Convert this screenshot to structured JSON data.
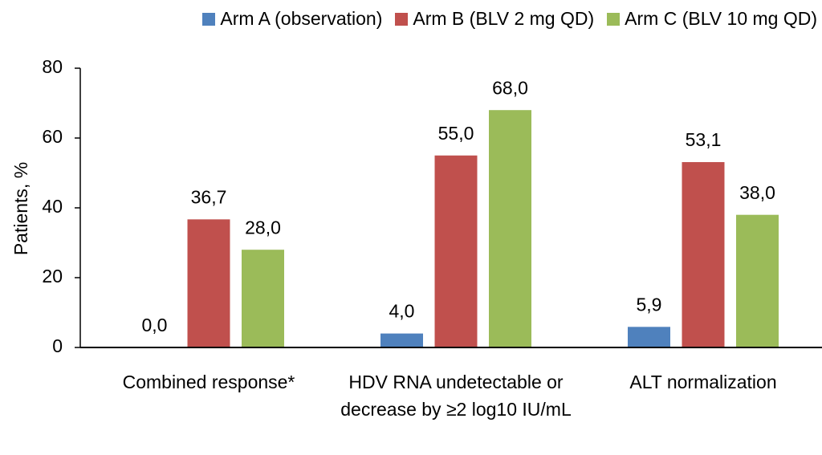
{
  "chart_data": {
    "type": "bar",
    "categories": [
      "Combined response*",
      "HDV RNA undetectable or decrease by ≥2 log10 IU/mL",
      "ALT normalization"
    ],
    "series": [
      {
        "name": "Arm A (observation)",
        "color": "#4f81bd",
        "values": [
          0.0,
          4.0,
          5.9
        ],
        "value_labels": [
          "0,0",
          "4,0",
          "5,9"
        ]
      },
      {
        "name": "Arm B (BLV 2 mg QD)",
        "color": "#c0504d",
        "values": [
          36.7,
          55.0,
          53.1
        ],
        "value_labels": [
          "36,7",
          "55,0",
          "53,1"
        ]
      },
      {
        "name": "Arm C (BLV 10 mg QD)",
        "color": "#9bbb59",
        "values": [
          28.0,
          68.0,
          38.0
        ],
        "value_labels": [
          "28,0",
          "68,0",
          "38,0"
        ]
      }
    ],
    "y_label": "Patients, %",
    "ylim": [
      0,
      80
    ],
    "yticks": [
      0,
      20,
      40,
      60,
      80
    ],
    "legend": "top",
    "grid": false
  }
}
